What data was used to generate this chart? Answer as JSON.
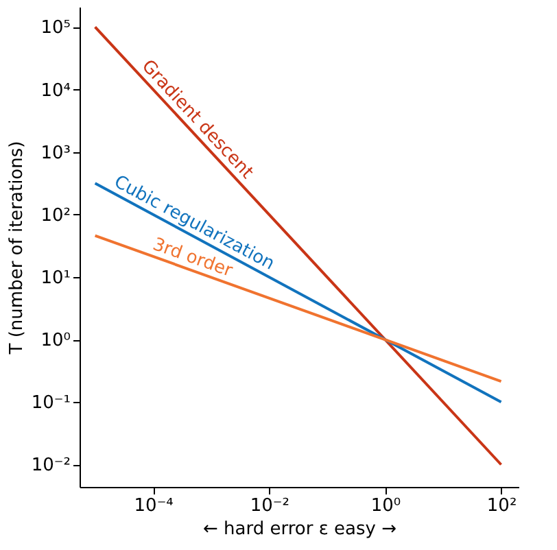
{
  "chart_data": {
    "type": "line",
    "xlabel": "← hard error ε easy →",
    "ylabel": "T (number of iterations)",
    "log": "xy",
    "grid": false,
    "legend": false,
    "xlim": [
      5.4e-06,
      200
    ],
    "ylim": [
      0.0044,
      210000
    ],
    "xticks": [
      {
        "value": 0.0001,
        "label": "10⁻⁴"
      },
      {
        "value": 0.01,
        "label": "10⁻²"
      },
      {
        "value": 1,
        "label": "10⁰"
      },
      {
        "value": 100,
        "label": "10²"
      }
    ],
    "yticks": [
      {
        "value": 0.01,
        "label": "10⁻²"
      },
      {
        "value": 0.1,
        "label": "10⁻¹"
      },
      {
        "value": 1,
        "label": "10⁰"
      },
      {
        "value": 10,
        "label": "10¹"
      },
      {
        "value": 100,
        "label": "10²"
      },
      {
        "value": 1000,
        "label": "10³"
      },
      {
        "value": 10000,
        "label": "10⁴"
      },
      {
        "value": 100000,
        "label": "10⁵"
      }
    ],
    "x": [
      1e-05,
      100
    ],
    "series": [
      {
        "name": "Gradient descent",
        "color": "#c93516",
        "values": [
          100000,
          0.01
        ]
      },
      {
        "name": "Cubic regularization",
        "color": "#1173bd",
        "values": [
          316,
          0.1
        ]
      },
      {
        "name": "3rd order",
        "color": "#f0732f",
        "values": [
          46,
          0.215
        ]
      }
    ]
  }
}
